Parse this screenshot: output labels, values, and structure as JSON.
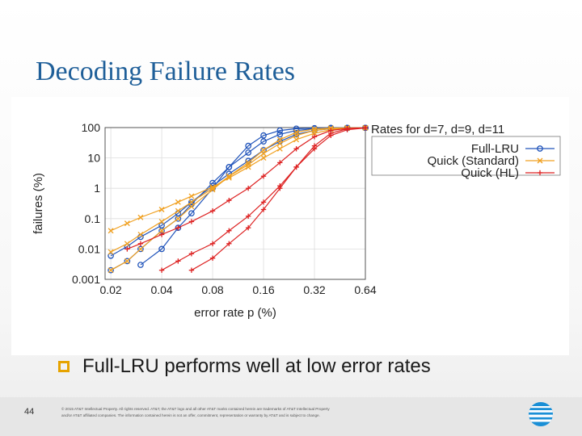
{
  "slide": {
    "title": "Decoding Failure Rates",
    "bullet": "Full-LRU performs well at low error rates",
    "page_number": "44",
    "legal_line1": "© 2015 AT&T Intellectual Property. All rights reserved. AT&T, the AT&T logo and all other AT&T marks contained herein are trademarks of AT&T Intellectual Property",
    "legal_line2": "and/or AT&T affiliated companies. The information contained herein is not an offer, commitment, representation or warranty by AT&T and is subject to change."
  },
  "colors": {
    "title": "#1f5f99",
    "full_lru": "#2255bb",
    "quick_standard": "#f0a020",
    "quick_hl": "#dd2222",
    "bullet_box": "#e6a300"
  },
  "icons": {
    "bullet": "square-outline-icon",
    "logo": "att-globe-icon"
  },
  "chart_data": {
    "type": "line",
    "title": "Rates for d=7, d=9, d=11",
    "xlabel": "error rate p (%)",
    "ylabel": "failures (%)",
    "xscale": "log",
    "yscale": "log",
    "xlim": [
      0.0185,
      0.64
    ],
    "ylim": [
      0.001,
      100
    ],
    "x_ticks": [
      0.02,
      0.04,
      0.08,
      0.16,
      0.32,
      0.64
    ],
    "x_tick_labels": [
      "0.02",
      "0.04",
      "0.08",
      "0.16",
      "0.32",
      "0.64"
    ],
    "y_ticks": [
      0.001,
      0.01,
      0.1,
      1,
      10,
      100
    ],
    "y_tick_labels": [
      "0.001",
      "0.01",
      "0.1",
      "1",
      "10",
      "100"
    ],
    "legend_position": "top-right",
    "series": [
      {
        "name": "Full-LRU",
        "marker": "circle",
        "color": "#2255bb",
        "curve": "d=7",
        "x": [
          0.02,
          0.025,
          0.03,
          0.04,
          0.05,
          0.06,
          0.08,
          0.1,
          0.13,
          0.16,
          0.2,
          0.25,
          0.32,
          0.4,
          0.5,
          0.64
        ],
        "y": [
          0.006,
          0.012,
          0.025,
          0.06,
          0.15,
          0.35,
          1.2,
          3,
          8,
          18,
          35,
          60,
          80,
          92,
          97,
          98
        ]
      },
      {
        "name": "Full-LRU",
        "marker": "circle",
        "color": "#2255bb",
        "curve": "d=9",
        "x": [
          0.02,
          0.025,
          0.03,
          0.04,
          0.05,
          0.06,
          0.08,
          0.1,
          0.13,
          0.16,
          0.2,
          0.25,
          0.32,
          0.4,
          0.5,
          0.64
        ],
        "y": [
          0.002,
          0.004,
          0.01,
          0.04,
          0.1,
          0.3,
          1.5,
          5,
          15,
          35,
          60,
          80,
          92,
          96,
          98,
          98
        ]
      },
      {
        "name": "Full-LRU",
        "marker": "circle",
        "color": "#2255bb",
        "curve": "d=11",
        "x": [
          0.03,
          0.04,
          0.05,
          0.06,
          0.08,
          0.1,
          0.13,
          0.16,
          0.2,
          0.25,
          0.32,
          0.4,
          0.5,
          0.64
        ],
        "y": [
          0.003,
          0.01,
          0.05,
          0.15,
          1,
          5,
          25,
          55,
          80,
          92,
          96,
          98,
          98,
          98
        ]
      },
      {
        "name": "Quick (Standard)",
        "marker": "x",
        "color": "#f0a020",
        "curve": "d=7",
        "x": [
          0.02,
          0.025,
          0.03,
          0.04,
          0.05,
          0.06,
          0.08,
          0.1,
          0.13,
          0.16,
          0.2,
          0.25,
          0.32,
          0.4,
          0.5,
          0.64
        ],
        "y": [
          0.04,
          0.07,
          0.11,
          0.2,
          0.35,
          0.55,
          1.1,
          2.2,
          5,
          10,
          20,
          40,
          65,
          85,
          95,
          98
        ]
      },
      {
        "name": "Quick (Standard)",
        "marker": "x",
        "color": "#f0a020",
        "curve": "d=9",
        "x": [
          0.02,
          0.025,
          0.03,
          0.04,
          0.05,
          0.06,
          0.08,
          0.1,
          0.13,
          0.16,
          0.2,
          0.25,
          0.32,
          0.4,
          0.5,
          0.64
        ],
        "y": [
          0.008,
          0.015,
          0.03,
          0.08,
          0.18,
          0.35,
          1,
          2.5,
          6,
          14,
          30,
          55,
          80,
          93,
          97,
          98
        ]
      },
      {
        "name": "Quick (Standard)",
        "marker": "x",
        "color": "#f0a020",
        "curve": "d=11",
        "x": [
          0.02,
          0.025,
          0.03,
          0.04,
          0.05,
          0.06,
          0.08,
          0.1,
          0.13,
          0.16,
          0.2,
          0.25,
          0.32,
          0.4,
          0.5,
          0.64
        ],
        "y": [
          0.002,
          0.004,
          0.01,
          0.04,
          0.1,
          0.25,
          0.9,
          2.5,
          7,
          18,
          40,
          70,
          90,
          96,
          98,
          98
        ]
      },
      {
        "name": "Quick (HL)",
        "marker": "plus",
        "color": "#dd2222",
        "curve": "d=7",
        "x": [
          0.025,
          0.03,
          0.04,
          0.05,
          0.06,
          0.08,
          0.1,
          0.13,
          0.16,
          0.2,
          0.25,
          0.32,
          0.4,
          0.5,
          0.64
        ],
        "y": [
          0.01,
          0.015,
          0.03,
          0.05,
          0.08,
          0.18,
          0.4,
          1,
          2.5,
          7,
          20,
          50,
          80,
          94,
          98
        ]
      },
      {
        "name": "Quick (HL)",
        "marker": "plus",
        "color": "#dd2222",
        "curve": "d=9",
        "x": [
          0.04,
          0.05,
          0.06,
          0.08,
          0.1,
          0.13,
          0.16,
          0.2,
          0.25,
          0.32,
          0.4,
          0.5,
          0.64
        ],
        "y": [
          0.002,
          0.004,
          0.007,
          0.015,
          0.04,
          0.12,
          0.35,
          1.2,
          5,
          20,
          55,
          85,
          97
        ]
      },
      {
        "name": "Quick (HL)",
        "marker": "plus",
        "color": "#dd2222",
        "curve": "d=11",
        "x": [
          0.06,
          0.08,
          0.1,
          0.13,
          0.16,
          0.2,
          0.25,
          0.32,
          0.4,
          0.5,
          0.64
        ],
        "y": [
          0.002,
          0.005,
          0.015,
          0.05,
          0.2,
          1,
          5,
          25,
          65,
          92,
          98
        ]
      }
    ],
    "legend": [
      "Full-LRU",
      "Quick (Standard)",
      "Quick (HL)"
    ]
  }
}
